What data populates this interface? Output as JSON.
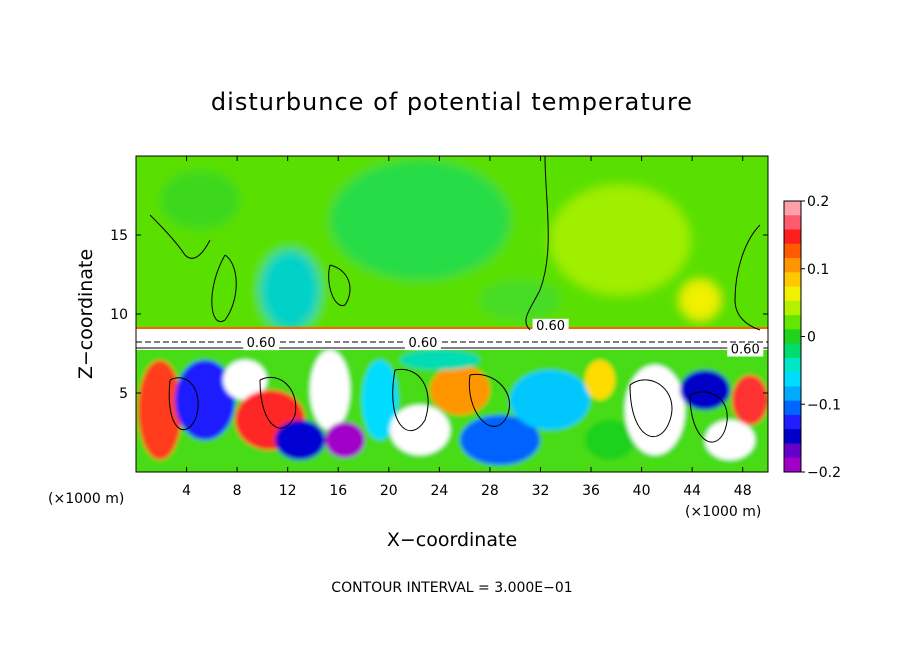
{
  "chart_data": {
    "type": "heatmap",
    "title": "disturbunce of potential temperature",
    "xlabel": "X−coordinate",
    "ylabel": "Z−coordinate",
    "x_unit": "(×1000 m)",
    "x_unit_right": "(×1000 m)",
    "xlim": [
      0,
      50
    ],
    "ylim": [
      0,
      20
    ],
    "xticks": [
      4,
      8,
      12,
      16,
      20,
      24,
      28,
      32,
      36,
      40,
      44,
      48
    ],
    "yticks": [
      5,
      10,
      15
    ],
    "colorbar": {
      "range": [
        -0.2,
        0.2
      ],
      "ticks": [
        "0.2",
        "0.1",
        "0",
        "−0.1",
        "−0.2"
      ],
      "tick_values": [
        0.2,
        0.1,
        0,
        -0.1,
        -0.2
      ],
      "colors": [
        "#ff9fa8",
        "#ff5a6e",
        "#ff1e1e",
        "#ff5a00",
        "#ff9600",
        "#ffc800",
        "#f0f000",
        "#b4f000",
        "#64e600",
        "#1ed21e",
        "#00dc6e",
        "#00e6c8",
        "#00dcff",
        "#00aaff",
        "#0064ff",
        "#1e1eff",
        "#0000c8",
        "#6400c8",
        "#a000c8"
      ]
    },
    "contour_labels": [
      "0.60",
      "0.60",
      "0.60",
      "0.60"
    ],
    "note": "CONTOUR INTERVAL = 3.000E−01"
  }
}
